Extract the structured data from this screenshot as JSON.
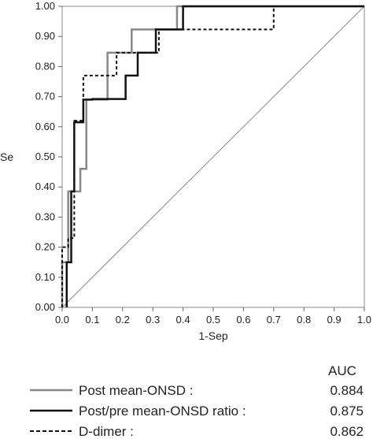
{
  "chart_data": {
    "type": "line",
    "title": "",
    "xlabel": "1-Sep",
    "ylabel": "Se",
    "xlim": [
      0,
      1
    ],
    "ylim": [
      0,
      1
    ],
    "x_ticks": [
      "0.0",
      "0.1",
      "0.2",
      "0.3",
      "0.4",
      "0.5",
      "0.6",
      "0.7",
      "0.8",
      "0.9",
      "1.0"
    ],
    "y_ticks": [
      "0.00",
      "0.10",
      "0.20",
      "0.30",
      "0.40",
      "0.50",
      "0.60",
      "0.70",
      "0.80",
      "0.90",
      "1.00"
    ],
    "grid": false,
    "legend_header": "AUC",
    "reference_line": {
      "x": [
        0,
        1
      ],
      "y": [
        0,
        1
      ],
      "color": "#888888"
    },
    "series": [
      {
        "name": "Post mean-ONSD :",
        "auc": "0.884",
        "color": "#888888",
        "style": "solid",
        "x": [
          0,
          0,
          0.02,
          0.02,
          0.06,
          0.06,
          0.08,
          0.08,
          0.15,
          0.15,
          0.23,
          0.23,
          0.38,
          0.38,
          0.62,
          0.62,
          1.0
        ],
        "y": [
          0,
          0.15,
          0.15,
          0.385,
          0.385,
          0.46,
          0.46,
          0.69,
          0.69,
          0.846,
          0.846,
          0.923,
          0.923,
          1.0,
          1.0,
          1.0,
          1.0
        ]
      },
      {
        "name": "Post/pre mean-ONSD ratio :",
        "auc": "0.875",
        "color": "#111111",
        "style": "solid",
        "x": [
          0.015,
          0.015,
          0.03,
          0.03,
          0.04,
          0.04,
          0.07,
          0.07,
          0.1,
          0.1,
          0.21,
          0.21,
          0.25,
          0.25,
          0.31,
          0.31,
          0.4,
          0.4,
          1.0
        ],
        "y": [
          0,
          0.15,
          0.15,
          0.385,
          0.385,
          0.615,
          0.615,
          0.69,
          0.69,
          0.692,
          0.692,
          0.77,
          0.77,
          0.846,
          0.846,
          0.923,
          0.923,
          1.0,
          1.0
        ]
      },
      {
        "name": "D-dimer :",
        "auc": "0.862",
        "color": "#111111",
        "style": "dashed",
        "x": [
          0,
          0,
          0.02,
          0.02,
          0.04,
          0.04,
          0.07,
          0.07,
          0.1,
          0.1,
          0.13,
          0.13,
          0.18,
          0.18,
          0.24,
          0.24,
          0.32,
          0.32,
          0.39,
          0.39,
          0.62,
          0.62,
          0.7,
          0.7,
          1.0
        ],
        "y": [
          0,
          0.2,
          0.2,
          0.23,
          0.23,
          0.62,
          0.62,
          0.77,
          0.77,
          0.77,
          0.77,
          0.77,
          0.77,
          0.846,
          0.846,
          0.846,
          0.846,
          0.923,
          0.923,
          0.923,
          0.923,
          0.923,
          0.923,
          1.0,
          1.0
        ]
      }
    ]
  }
}
